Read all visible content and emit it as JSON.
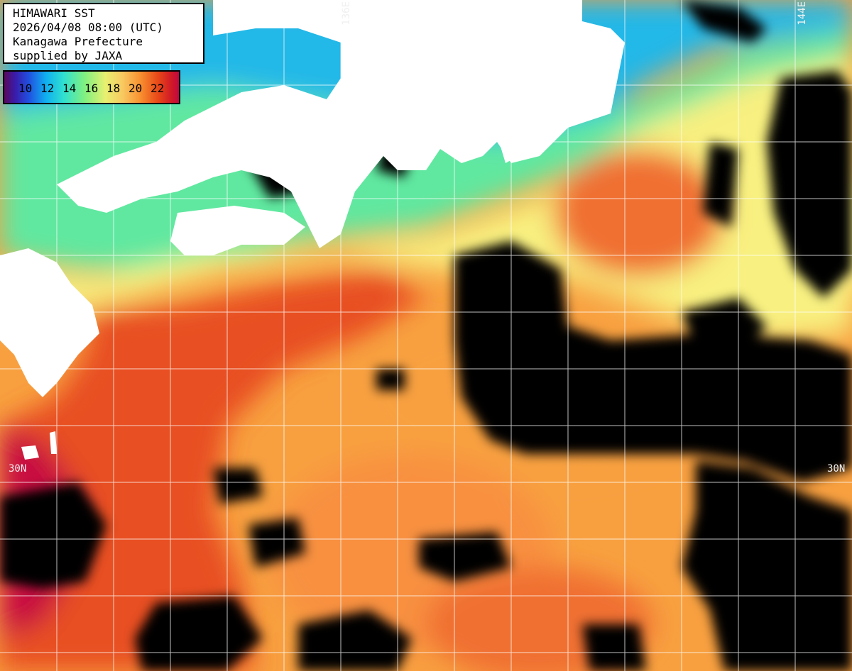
{
  "header": {
    "line1": "HIMAWARI SST",
    "line2": "2026/04/08 08:00 (UTC)",
    "line3": "Kanagawa Prefecture",
    "line4": "supplied by JAXA"
  },
  "legend": {
    "labels": [
      "10",
      "12",
      "14",
      "16",
      "18",
      "20",
      "22"
    ]
  },
  "grid_labels": {
    "lon_left": "136E",
    "lon_right": "144E",
    "lat_left": "30N",
    "lat_right": "30N"
  },
  "colors": {
    "land": "#ffffff",
    "cloud": "#000000",
    "cold": "#20b8e8",
    "cool": "#60e8a0",
    "mild": "#f8f080",
    "warm": "#f8a040",
    "hot": "#e85020",
    "hottest": "#c81040",
    "grid": "#ffffff"
  }
}
